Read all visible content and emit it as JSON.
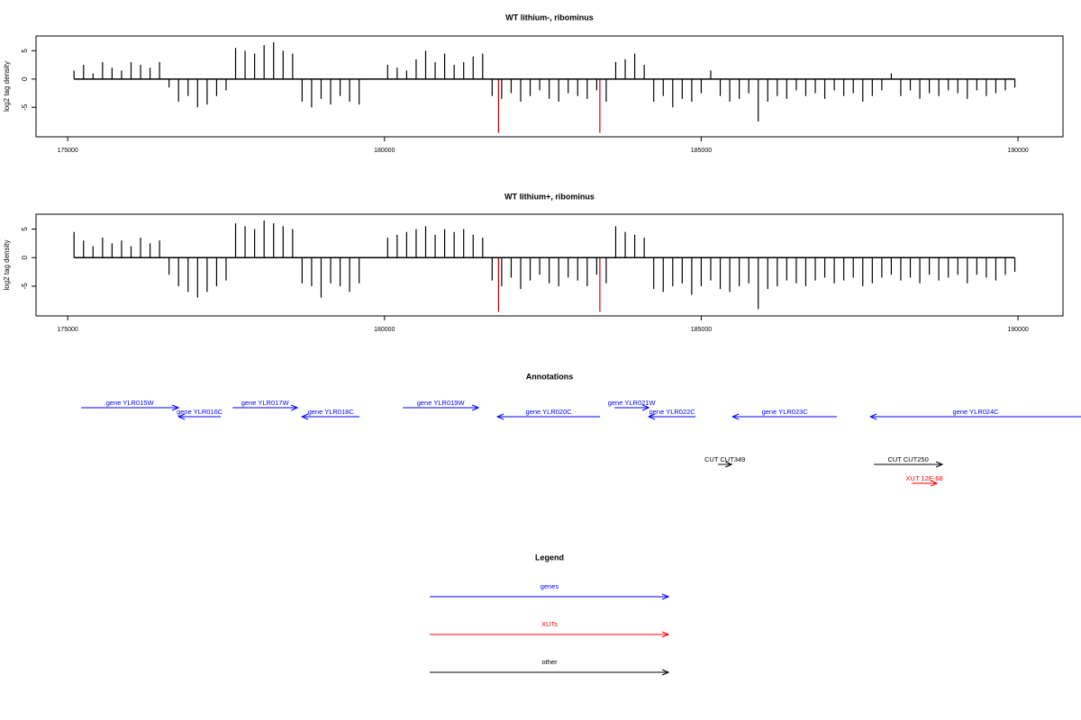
{
  "chart_data": [
    {
      "type": "bar",
      "title": "WT lithium-, ribominus",
      "ylabel": "log2 tag density",
      "color": "#000000",
      "x": [
        175100,
        175250,
        175400,
        175550,
        175700,
        175850,
        176000,
        176150,
        176300,
        176450,
        176600,
        176750,
        176900,
        177050,
        177200,
        177350,
        177500,
        177650,
        177800,
        177950,
        178100,
        178250,
        178400,
        178550,
        178700,
        178850,
        179000,
        179150,
        179300,
        179450,
        179600,
        179750,
        179900,
        180050,
        180200,
        180350,
        180500,
        180650,
        180800,
        180950,
        181100,
        181250,
        181400,
        181550,
        181700,
        181850,
        182000,
        182150,
        182300,
        182450,
        182600,
        182750,
        182900,
        183050,
        183200,
        183350,
        183500,
        183650,
        183800,
        183950,
        184100,
        184250,
        184400,
        184550,
        184700,
        184850,
        185000,
        185150,
        185300,
        185450,
        185600,
        185750,
        185900,
        186050,
        186200,
        186350,
        186500,
        186650,
        186800,
        186950,
        187100,
        187250,
        187400,
        187550,
        187700,
        187850,
        188000,
        188150,
        188300,
        188450,
        188600,
        188750,
        188900,
        189050,
        189200,
        189350,
        189500,
        189650,
        189800,
        189950
      ],
      "values": [
        1.5,
        2.5,
        1,
        3,
        2,
        1.5,
        3,
        2.5,
        2,
        3,
        -1.5,
        -4,
        -3,
        -5,
        -4.5,
        -3,
        -2,
        5.5,
        5,
        4.5,
        6,
        6.5,
        5,
        4.5,
        -4,
        -5,
        -3.5,
        -4.5,
        -3,
        -4,
        -4.5,
        null,
        null,
        2.5,
        2,
        1.5,
        3.5,
        5,
        3,
        4.5,
        2.5,
        3,
        4,
        4.5,
        -3,
        -3.5,
        -2.5,
        -4,
        -3,
        -2,
        -3.5,
        -4,
        -2.5,
        -3,
        -3.5,
        -2,
        -4,
        3,
        3.5,
        4.5,
        2.5,
        -4,
        -3,
        -5,
        -3.5,
        -4,
        -2.5,
        1.5,
        -3,
        -4,
        -3.5,
        -2.5,
        -7.5,
        -4,
        -3,
        -3.5,
        -2,
        -3,
        -2.5,
        -3.5,
        -2,
        -3,
        -2.5,
        -4,
        -3,
        -2,
        1,
        -3,
        -2,
        -3.5,
        -2.5,
        -3,
        -2,
        -2.5,
        -3.5,
        -2,
        -3,
        -2.5,
        -2,
        -1.5
      ],
      "highlights": {
        "color": "#cc0000",
        "x": [
          181800,
          183400
        ],
        "values": [
          -9.5,
          -9.5
        ]
      },
      "xlim": [
        174500,
        190710
      ],
      "xticks": [
        175000,
        180000,
        185000,
        190000
      ],
      "ylim": [
        -10.2,
        7.6
      ],
      "yticks": [
        -5,
        0,
        5
      ]
    },
    {
      "type": "bar",
      "title": "WT lithium+, ribominus",
      "ylabel": "log2 tag density",
      "color": "#000000",
      "x": [
        175100,
        175250,
        175400,
        175550,
        175700,
        175850,
        176000,
        176150,
        176300,
        176450,
        176600,
        176750,
        176900,
        177050,
        177200,
        177350,
        177500,
        177650,
        177800,
        177950,
        178100,
        178250,
        178400,
        178550,
        178700,
        178850,
        179000,
        179150,
        179300,
        179450,
        179600,
        179750,
        179900,
        180050,
        180200,
        180350,
        180500,
        180650,
        180800,
        180950,
        181100,
        181250,
        181400,
        181550,
        181700,
        181850,
        182000,
        182150,
        182300,
        182450,
        182600,
        182750,
        182900,
        183050,
        183200,
        183350,
        183500,
        183650,
        183800,
        183950,
        184100,
        184250,
        184400,
        184550,
        184700,
        184850,
        185000,
        185150,
        185300,
        185450,
        185600,
        185750,
        185900,
        186050,
        186200,
        186350,
        186500,
        186650,
        186800,
        186950,
        187100,
        187250,
        187400,
        187550,
        187700,
        187850,
        188000,
        188150,
        188300,
        188450,
        188600,
        188750,
        188900,
        189050,
        189200,
        189350,
        189500,
        189650,
        189800,
        189950
      ],
      "values": [
        4.5,
        3,
        2,
        3.5,
        2.5,
        3,
        2,
        3.5,
        2.5,
        3,
        -3,
        -5,
        -6,
        -7,
        -6,
        -5,
        -4,
        6,
        5.5,
        5,
        6.5,
        6,
        5.5,
        5,
        -4.5,
        -5,
        -7,
        -4.5,
        -5,
        -6,
        -4.5,
        null,
        null,
        3.5,
        4,
        4.5,
        5,
        5.5,
        4,
        5,
        4.5,
        5,
        4,
        3.5,
        -4,
        -5,
        -3.5,
        -5.5,
        -4,
        -3,
        -4.5,
        -5,
        -3.5,
        -4,
        -5,
        -3,
        -4.5,
        5.5,
        4.5,
        4,
        3.5,
        -5.5,
        -6,
        -5,
        -4.5,
        -6.5,
        -5,
        -4,
        -5.5,
        -6,
        -5,
        -4.5,
        -9,
        -5.5,
        -5,
        -4,
        -4.5,
        -5,
        -4,
        -3.5,
        -4.5,
        -4,
        -3.5,
        -5,
        -4.5,
        -3.5,
        -3,
        -4,
        -3.5,
        -4.5,
        -3,
        -4,
        -3.5,
        -3,
        -4.5,
        -3,
        -3.5,
        -4,
        -3,
        -2.5
      ],
      "highlights": {
        "color": "#cc0000",
        "x": [
          181800,
          183400
        ],
        "values": [
          -9.5,
          -9.5
        ]
      },
      "xlim": [
        174500,
        190710
      ],
      "xticks": [
        175000,
        180000,
        185000,
        190000
      ],
      "ylim": [
        -10.2,
        7.6
      ],
      "yticks": [
        -5,
        0,
        5
      ]
    }
  ],
  "annotations": {
    "title": "Annotations",
    "items": [
      {
        "label": "gene YLR015W",
        "kind": "genes",
        "start": 175213,
        "end": 176749
      },
      {
        "label": "gene YLR016C",
        "kind": "genes",
        "start": 177417,
        "end": 176749
      },
      {
        "label": "gene YLR017W",
        "kind": "genes",
        "start": 177602,
        "end": 178626
      },
      {
        "label": "gene YLR018C",
        "kind": "genes",
        "start": 179607,
        "end": 178697
      },
      {
        "label": "gene YLR019W",
        "kind": "genes",
        "start": 180289,
        "end": 181484
      },
      {
        "label": "gene YLR020C",
        "kind": "genes",
        "start": 183403,
        "end": 181782
      },
      {
        "label": "gene YLR021W",
        "kind": "genes",
        "start": 183631,
        "end": 184171
      },
      {
        "label": "gene YLR022C",
        "kind": "genes",
        "start": 184911,
        "end": 184171
      },
      {
        "label": "gene YLR023C",
        "kind": "genes",
        "start": 187143,
        "end": 185494
      },
      {
        "label": "gene YLR024C",
        "kind": "genes",
        "start": 190996,
        "end": 187669
      },
      {
        "label": "CUT CUT349",
        "kind": "other",
        "start": 185266,
        "end": 185480
      },
      {
        "label": "CUT CUT250",
        "kind": "other",
        "start": 187726,
        "end": 188806
      },
      {
        "label": "XUT 12E-68",
        "kind": "XUTs",
        "start": 188323,
        "end": 188721
      }
    ]
  },
  "legend": {
    "title": "Legend",
    "entries": [
      {
        "label": "genes",
        "color": "#0000ff"
      },
      {
        "label": "XUTs",
        "color": "#ff0000"
      },
      {
        "label": "other",
        "color": "#000000"
      }
    ]
  }
}
